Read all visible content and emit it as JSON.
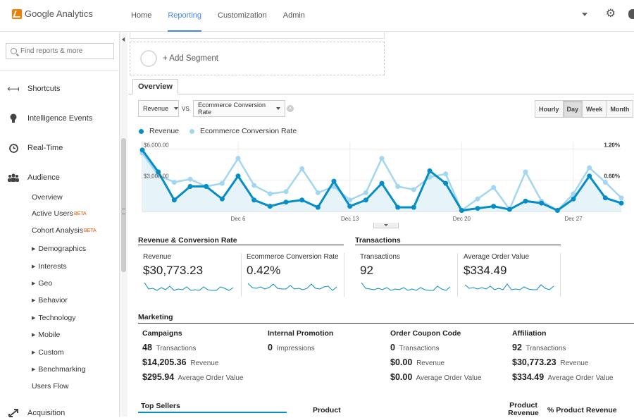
{
  "app": {
    "name": "Google Analytics"
  },
  "nav": {
    "tabs": [
      "Home",
      "Reporting",
      "Customization",
      "Admin"
    ],
    "active": "Reporting"
  },
  "search": {
    "placeholder": "Find reports & more"
  },
  "sidebar": {
    "main_items": [
      {
        "label": "Shortcuts",
        "icon": "shortcut-icon"
      },
      {
        "label": "Intelligence Events",
        "icon": "lightbulb-icon"
      },
      {
        "label": "Real-Time",
        "icon": "clock-icon"
      },
      {
        "label": "Audience",
        "icon": "people-icon"
      },
      {
        "label": "Acquisition",
        "icon": "acquisition-icon"
      }
    ],
    "audience_sub": [
      {
        "label": "Overview",
        "expand": false
      },
      {
        "label": "Active Users",
        "badge": "BETA",
        "expand": false
      },
      {
        "label": "Cohort Analysis",
        "badge": "BETA",
        "expand": false
      },
      {
        "label": "Demographics",
        "expand": true
      },
      {
        "label": "Interests",
        "expand": true
      },
      {
        "label": "Geo",
        "expand": true
      },
      {
        "label": "Behavior",
        "expand": true
      },
      {
        "label": "Technology",
        "expand": true
      },
      {
        "label": "Mobile",
        "expand": true
      },
      {
        "label": "Custom",
        "expand": true
      },
      {
        "label": "Benchmarking",
        "expand": true
      },
      {
        "label": "Users Flow",
        "expand": false
      }
    ]
  },
  "segment": {
    "add_label": "+ Add Segment"
  },
  "overview": {
    "tab": "Overview",
    "metric1": "Revenue",
    "vs": "VS.",
    "metric2": "Ecommerce Conversion Rate",
    "granularity": [
      "Hourly",
      "Day",
      "Week",
      "Month"
    ],
    "active_granularity": "Day"
  },
  "colors": {
    "revenue": "#058dc7",
    "conversion": "#a3d6f2",
    "accent": "#4285f4"
  },
  "chart_data": {
    "type": "line",
    "x_tick_labels": [
      "Dec 6",
      "Dec 13",
      "Dec 20",
      "Dec 27"
    ],
    "x_tick_index": [
      6,
      13,
      20,
      27
    ],
    "left_axis": {
      "labels": [
        "$6,000.00",
        "$3,000.00"
      ],
      "values": [
        6000,
        3000
      ],
      "ylim": [
        0,
        6700
      ]
    },
    "right_axis": {
      "labels": [
        "1.20%",
        "0.60%"
      ],
      "values": [
        1.2,
        0.6
      ],
      "ylim": [
        0,
        1.34
      ]
    },
    "series": [
      {
        "name": "Revenue",
        "axis": "left",
        "values": [
          5900,
          3800,
          1100,
          2400,
          2400,
          1200,
          3400,
          1100,
          500,
          900,
          1100,
          400,
          2900,
          500,
          1100,
          2700,
          400,
          400,
          3900,
          2700,
          100,
          300,
          500,
          200,
          1000,
          800,
          100,
          1200,
          3400,
          1300,
          800
        ]
      },
      {
        "name": "Ecommerce Conversion Rate",
        "axis": "left",
        "values": [
          5600,
          3500,
          2800,
          3100,
          2400,
          2700,
          5100,
          2500,
          1700,
          1900,
          4100,
          1800,
          2400,
          1100,
          1800,
          5100,
          2400,
          2100,
          3300,
          3600,
          100,
          1200,
          2300,
          200,
          3800,
          1000,
          100,
          1700,
          4200,
          2800,
          1300
        ]
      }
    ]
  },
  "summary": {
    "title_left": "Revenue & Conversion Rate",
    "title_right": "Transactions",
    "metrics": [
      {
        "label": "Revenue",
        "value": "$30,773.23"
      },
      {
        "label": "Ecommerce Conversion Rate",
        "value": "0.42%"
      },
      {
        "label": "Transactions",
        "value": "92"
      },
      {
        "label": "Average Order Value",
        "value": "$334.49"
      }
    ]
  },
  "marketing": {
    "title": "Marketing",
    "columns": [
      {
        "head": "Campaigns",
        "rows": [
          {
            "value": "48",
            "label": "Transactions"
          },
          {
            "value": "$14,205.36",
            "label": "Revenue"
          },
          {
            "value": "$295.94",
            "label": "Average Order Value"
          }
        ]
      },
      {
        "head": "Internal Promotion",
        "rows": [
          {
            "value": "0",
            "label": "Impressions"
          }
        ]
      },
      {
        "head": "Order Coupon Code",
        "rows": [
          {
            "value": "0",
            "label": "Transactions"
          },
          {
            "value": "$0.00",
            "label": "Revenue"
          },
          {
            "value": "$0.00",
            "label": "Average Order Value"
          }
        ]
      },
      {
        "head": "Affiliation",
        "rows": [
          {
            "value": "92",
            "label": "Transactions"
          },
          {
            "value": "$30,773.23",
            "label": "Revenue"
          },
          {
            "value": "$334.49",
            "label": "Average Order Value"
          }
        ]
      }
    ]
  },
  "bottom": {
    "top_sellers": "Top Sellers",
    "product": "Product",
    "product_revenue": "Product Revenue",
    "pct_product_revenue": "% Product Revenue"
  }
}
